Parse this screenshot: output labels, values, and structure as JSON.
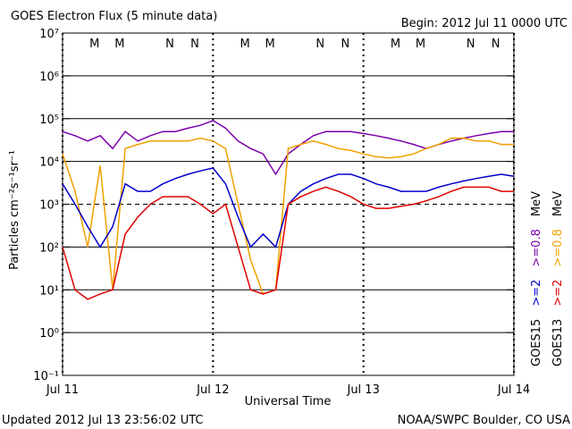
{
  "chart_data": {
    "type": "line",
    "title": "GOES Electron Flux (5 minute data)",
    "subtitle": "Begin: 2012 Jul 11 0000 UTC",
    "xlabel": "Universal Time",
    "ylabel": "Particles cm⁻²s⁻¹sr⁻¹",
    "footer_left": "Updated 2012 Jul 13 23:56:02 UTC",
    "footer_right": "NOAA/SWPC Boulder, CO USA",
    "ylog": true,
    "grid": true,
    "threshold": 1000,
    "xlim": [
      0,
      72
    ],
    "xticks": [
      {
        "value": 0,
        "label": "Jul 11"
      },
      {
        "value": 24,
        "label": "Jul 12"
      },
      {
        "value": 48,
        "label": "Jul 13"
      },
      {
        "value": 72,
        "label": "Jul 14"
      }
    ],
    "ylim": [
      0.1,
      10000000
    ],
    "yticks": [
      {
        "value": 0.1,
        "label": "10⁻¹"
      },
      {
        "value": 1,
        "label": "10⁰"
      },
      {
        "value": 10,
        "label": "10¹"
      },
      {
        "value": 100,
        "label": "10²"
      },
      {
        "value": 1000,
        "label": "10³"
      },
      {
        "value": 10000,
        "label": "10⁴"
      },
      {
        "value": 100000,
        "label": "10⁵"
      },
      {
        "value": 1000000,
        "label": "10⁶"
      },
      {
        "value": 10000000,
        "label": "10⁷"
      }
    ],
    "markers": [
      {
        "label": "M",
        "color": "#d00000",
        "x": 5.1
      },
      {
        "label": "M",
        "color": "#0000cc",
        "x": 9.1
      },
      {
        "label": "N",
        "color": "#d00000",
        "x": 17.1
      },
      {
        "label": "N",
        "color": "#0000cc",
        "x": 21.1
      },
      {
        "label": "M",
        "color": "#d00000",
        "x": 29.1
      },
      {
        "label": "M",
        "color": "#0000cc",
        "x": 33.1
      },
      {
        "label": "N",
        "color": "#d00000",
        "x": 41.1
      },
      {
        "label": "N",
        "color": "#0000cc",
        "x": 45.1
      },
      {
        "label": "M",
        "color": "#d00000",
        "x": 53.1
      },
      {
        "label": "M",
        "color": "#0000cc",
        "x": 57.1
      },
      {
        "label": "N",
        "color": "#d00000",
        "x": 65.1
      },
      {
        "label": "N",
        "color": "#0000cc",
        "x": 69.1
      }
    ],
    "legend": [
      {
        "parts": [
          {
            "text": "GOES15",
            "color": "#000000"
          },
          {
            "text": ">=2",
            "color": "#0000cc"
          },
          {
            "text": ">=0.8",
            "color": "#7a00a8"
          },
          {
            "text": "MeV",
            "color": "#000000"
          }
        ]
      },
      {
        "parts": [
          {
            "text": "GOES13",
            "color": "#000000"
          },
          {
            "text": ">=2",
            "color": "#e00000"
          },
          {
            "text": ">=0.8",
            "color": "#f0a000"
          },
          {
            "text": "MeV",
            "color": "#000000"
          }
        ]
      }
    ],
    "x": [
      0,
      2,
      4,
      6,
      8,
      10,
      12,
      14,
      16,
      18,
      20,
      22,
      24,
      26,
      28,
      30,
      32,
      34,
      36,
      38,
      40,
      42,
      44,
      46,
      48,
      50,
      52,
      54,
      56,
      58,
      60,
      62,
      64,
      66,
      68,
      70,
      72
    ],
    "series": [
      {
        "color": "#7a00a8",
        "values": [
          50000,
          40000,
          30000,
          40000,
          20000,
          50000,
          30000,
          40000,
          50000,
          50000,
          60000,
          70000,
          90000,
          60000,
          30000,
          20000,
          15000,
          5000,
          15000,
          25000,
          40000,
          50000,
          50000,
          50000,
          45000,
          40000,
          35000,
          30000,
          25000,
          20000,
          25000,
          30000,
          35000,
          40000,
          45000,
          50000,
          50000
        ]
      },
      {
        "color": "#f0a000",
        "values": [
          15000,
          2000,
          100,
          8000,
          10,
          20000,
          25000,
          30000,
          30000,
          30000,
          30000,
          35000,
          30000,
          20000,
          1000,
          50,
          8,
          10,
          20000,
          25000,
          30000,
          25000,
          20000,
          18000,
          15000,
          13000,
          12000,
          13000,
          15000,
          20000,
          25000,
          35000,
          35000,
          30000,
          30000,
          25000,
          25000
        ]
      },
      {
        "color": "#0000cc",
        "values": [
          3000,
          1000,
          300,
          100,
          300,
          3000,
          2000,
          2000,
          3000,
          4000,
          5000,
          6000,
          7000,
          3000,
          500,
          100,
          200,
          100,
          1000,
          2000,
          3000,
          4000,
          5000,
          5000,
          4000,
          3000,
          2500,
          2000,
          2000,
          2000,
          2500,
          3000,
          3500,
          4000,
          4500,
          5000,
          4500
        ]
      },
      {
        "color": "#e00000",
        "values": [
          100,
          10,
          6,
          8,
          10,
          200,
          500,
          1000,
          1500,
          1500,
          1500,
          1000,
          600,
          1000,
          100,
          10,
          8,
          10,
          1000,
          1500,
          2000,
          2500,
          2000,
          1500,
          1000,
          800,
          800,
          900,
          1000,
          1200,
          1500,
          2000,
          2500,
          2500,
          2500,
          2000,
          2000
        ]
      }
    ]
  }
}
